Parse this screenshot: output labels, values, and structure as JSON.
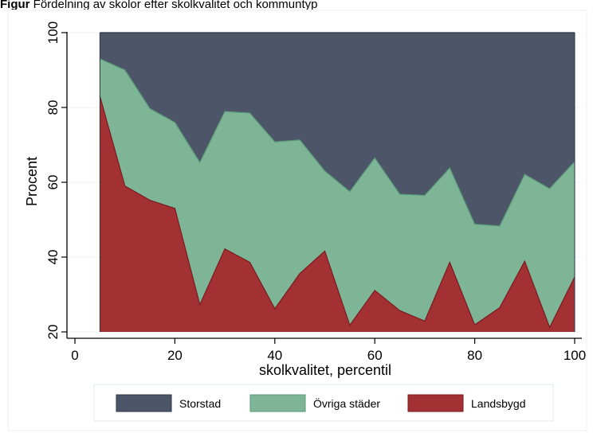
{
  "figure": {
    "caption_label": "Figur",
    "caption_text": "Fördelning av skolor efter skolkvalitet och kommuntyp"
  },
  "chart_data": {
    "type": "area",
    "stacked": true,
    "x": [
      5,
      10,
      15,
      20,
      25,
      30,
      35,
      40,
      45,
      50,
      55,
      60,
      65,
      70,
      75,
      80,
      85,
      90,
      95,
      100
    ],
    "xlabel": "skolkvalitet, percentil",
    "ylabel": "Procent",
    "xlim": [
      0,
      100
    ],
    "ylim": [
      20,
      100
    ],
    "xticks": [
      0,
      20,
      40,
      60,
      80,
      100
    ],
    "yticks": [
      20,
      40,
      60,
      80,
      100
    ],
    "grid": "horizontal",
    "legend_position": "bottom",
    "series": [
      {
        "name": "Storstad",
        "color": "#4d5668",
        "upper": [
          100,
          100,
          100,
          100,
          100,
          100,
          100,
          100,
          100,
          100,
          100,
          100,
          100,
          100,
          100,
          100,
          100,
          100,
          100,
          100
        ]
      },
      {
        "name": "Övriga städer",
        "color": "#7db596",
        "upper": [
          93,
          90,
          79.7,
          76,
          65.3,
          78.9,
          78.5,
          70.8,
          71.3,
          63,
          57.5,
          66.5,
          56.8,
          56.5,
          63.8,
          48.8,
          48.3,
          62.1,
          58.3,
          65.5
        ]
      },
      {
        "name": "Landsbygd",
        "color": "#a33134",
        "upper": [
          83,
          59,
          55.2,
          53,
          27.3,
          42.2,
          38.6,
          26.2,
          35.6,
          41.6,
          21.8,
          31.1,
          25.7,
          22.9,
          38.6,
          21.9,
          26.5,
          38.9,
          21.2,
          34.7
        ]
      }
    ],
    "legend": [
      "Storstad",
      "Övriga städer",
      "Landsbygd"
    ]
  }
}
